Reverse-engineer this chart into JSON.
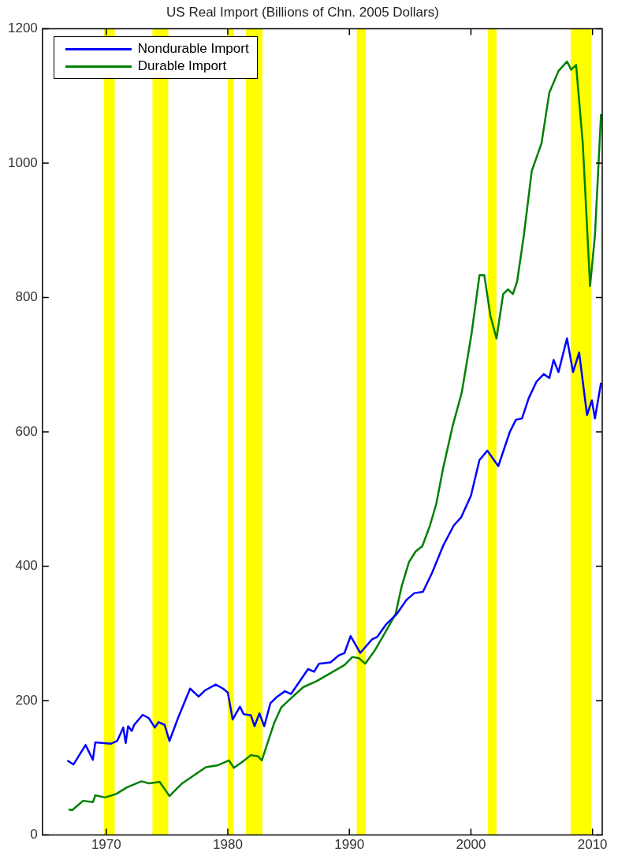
{
  "chart_data": {
    "type": "line",
    "title": "US Real Import (Billions of Chn. 2005 Dollars)",
    "xlim": [
      1964.75,
      2010.8
    ],
    "xticks": [
      1970,
      1980,
      1990,
      2000,
      2010
    ],
    "ylim": [
      0,
      1200
    ],
    "yticks": [
      0,
      200,
      400,
      600,
      800,
      1000,
      1200
    ],
    "grid": false,
    "legend": "top left",
    "marker": "none",
    "line_style": "solid",
    "bands": [
      {
        "axis": "x",
        "from": 1969.8,
        "to": 1970.7,
        "color": "#ffff00"
      },
      {
        "axis": "x",
        "from": 1973.8,
        "to": 1975.1,
        "color": "#ffff00"
      },
      {
        "axis": "x",
        "from": 1980.0,
        "to": 1980.5,
        "color": "#ffff00"
      },
      {
        "axis": "x",
        "from": 1981.5,
        "to": 1982.85,
        "color": "#ffff00"
      },
      {
        "axis": "x",
        "from": 1990.6,
        "to": 1991.35,
        "color": "#ffff00"
      },
      {
        "axis": "x",
        "from": 2001.4,
        "to": 2002.1,
        "color": "#ffff00"
      },
      {
        "axis": "x",
        "from": 2008.2,
        "to": 2009.9,
        "color": "#ffff00"
      }
    ],
    "series": [
      {
        "name": "Nondurable Import",
        "color": "#0000ff",
        "x": [
          1966.8,
          1967.3,
          1968.3,
          1968.9,
          1969.1,
          1970.4,
          1970.9,
          1971.4,
          1971.6,
          1971.8,
          1972.1,
          1972.3,
          1973.0,
          1973.5,
          1974.0,
          1974.3,
          1974.8,
          1975.2,
          1975.9,
          1976.9,
          1977.6,
          1978.1,
          1979.0,
          1979.6,
          1980.0,
          1980.4,
          1981.0,
          1981.3,
          1981.9,
          1982.2,
          1982.6,
          1983.0,
          1983.5,
          1984.0,
          1984.7,
          1985.2,
          1985.85,
          1986.6,
          1987.1,
          1987.5,
          1988.45,
          1989.1,
          1989.6,
          1990.1,
          1990.9,
          1991.85,
          1992.3,
          1993.0,
          1993.9,
          1994.7,
          1995.35,
          1996.05,
          1996.8,
          1997.7,
          1998.6,
          1999.2,
          2000.0,
          2000.7,
          2001.35,
          2002.25,
          2003.2,
          2003.7,
          2004.2,
          2004.75,
          2005.4,
          2006.0,
          2006.45,
          2006.8,
          2007.2,
          2007.9,
          2008.4,
          2008.9,
          2009.55,
          2009.95,
          2010.2,
          2010.7
        ],
        "values": [
          111,
          105,
          134,
          112,
          138,
          136,
          140,
          160,
          137,
          162,
          155,
          164,
          179,
          174,
          160,
          168,
          164,
          140,
          174,
          218,
          206,
          215,
          224,
          218,
          212,
          172,
          191,
          180,
          178,
          162,
          181,
          162,
          196,
          205,
          214,
          210,
          227,
          247,
          243,
          255,
          257,
          267,
          271,
          296,
          271,
          291,
          295,
          313,
          329,
          350,
          360,
          362,
          390,
          430,
          461,
          473,
          505,
          558,
          572,
          549,
          600,
          618,
          620,
          650,
          675,
          686,
          680,
          707,
          689,
          739,
          689,
          718,
          625,
          647,
          620,
          673
        ]
      },
      {
        "name": "Durable Import",
        "color": "#008000",
        "x": [
          1966.9,
          1967.2,
          1968.1,
          1968.9,
          1969.1,
          1969.9,
          1970.8,
          1971.7,
          1972.9,
          1973.5,
          1974.4,
          1975.2,
          1976.25,
          1977.15,
          1978.2,
          1979.2,
          1980.1,
          1980.5,
          1981.2,
          1981.9,
          1982.5,
          1982.8,
          1983.25,
          1983.8,
          1984.4,
          1985.1,
          1986.2,
          1987.3,
          1988.45,
          1989.6,
          1990.25,
          1990.8,
          1991.3,
          1992.1,
          1993.0,
          1993.8,
          1994.3,
          1994.9,
          1995.45,
          1996.0,
          1996.6,
          1997.15,
          1997.7,
          1998.5,
          1999.25,
          2000.05,
          2000.7,
          2001.1,
          2001.6,
          2002.1,
          2002.65,
          2003.05,
          2003.45,
          2003.8,
          2004.35,
          2005.0,
          2005.8,
          2006.45,
          2007.2,
          2007.9,
          2008.25,
          2008.65,
          2009.2,
          2009.8,
          2010.2,
          2010.7
        ],
        "values": [
          38,
          37,
          51,
          49,
          59,
          56,
          61,
          71,
          80,
          77,
          79,
          58,
          77,
          88,
          101,
          104,
          111,
          100,
          109,
          119,
          117,
          111,
          136,
          166,
          190,
          202,
          220,
          229,
          241,
          253,
          265,
          263,
          255,
          275,
          303,
          329,
          370,
          406,
          422,
          430,
          459,
          493,
          545,
          609,
          659,
          746,
          833,
          833,
          773,
          739,
          805,
          812,
          805,
          824,
          892,
          988,
          1029,
          1105,
          1137,
          1151,
          1139,
          1146,
          1029,
          817,
          892,
          1073
        ]
      }
    ]
  }
}
